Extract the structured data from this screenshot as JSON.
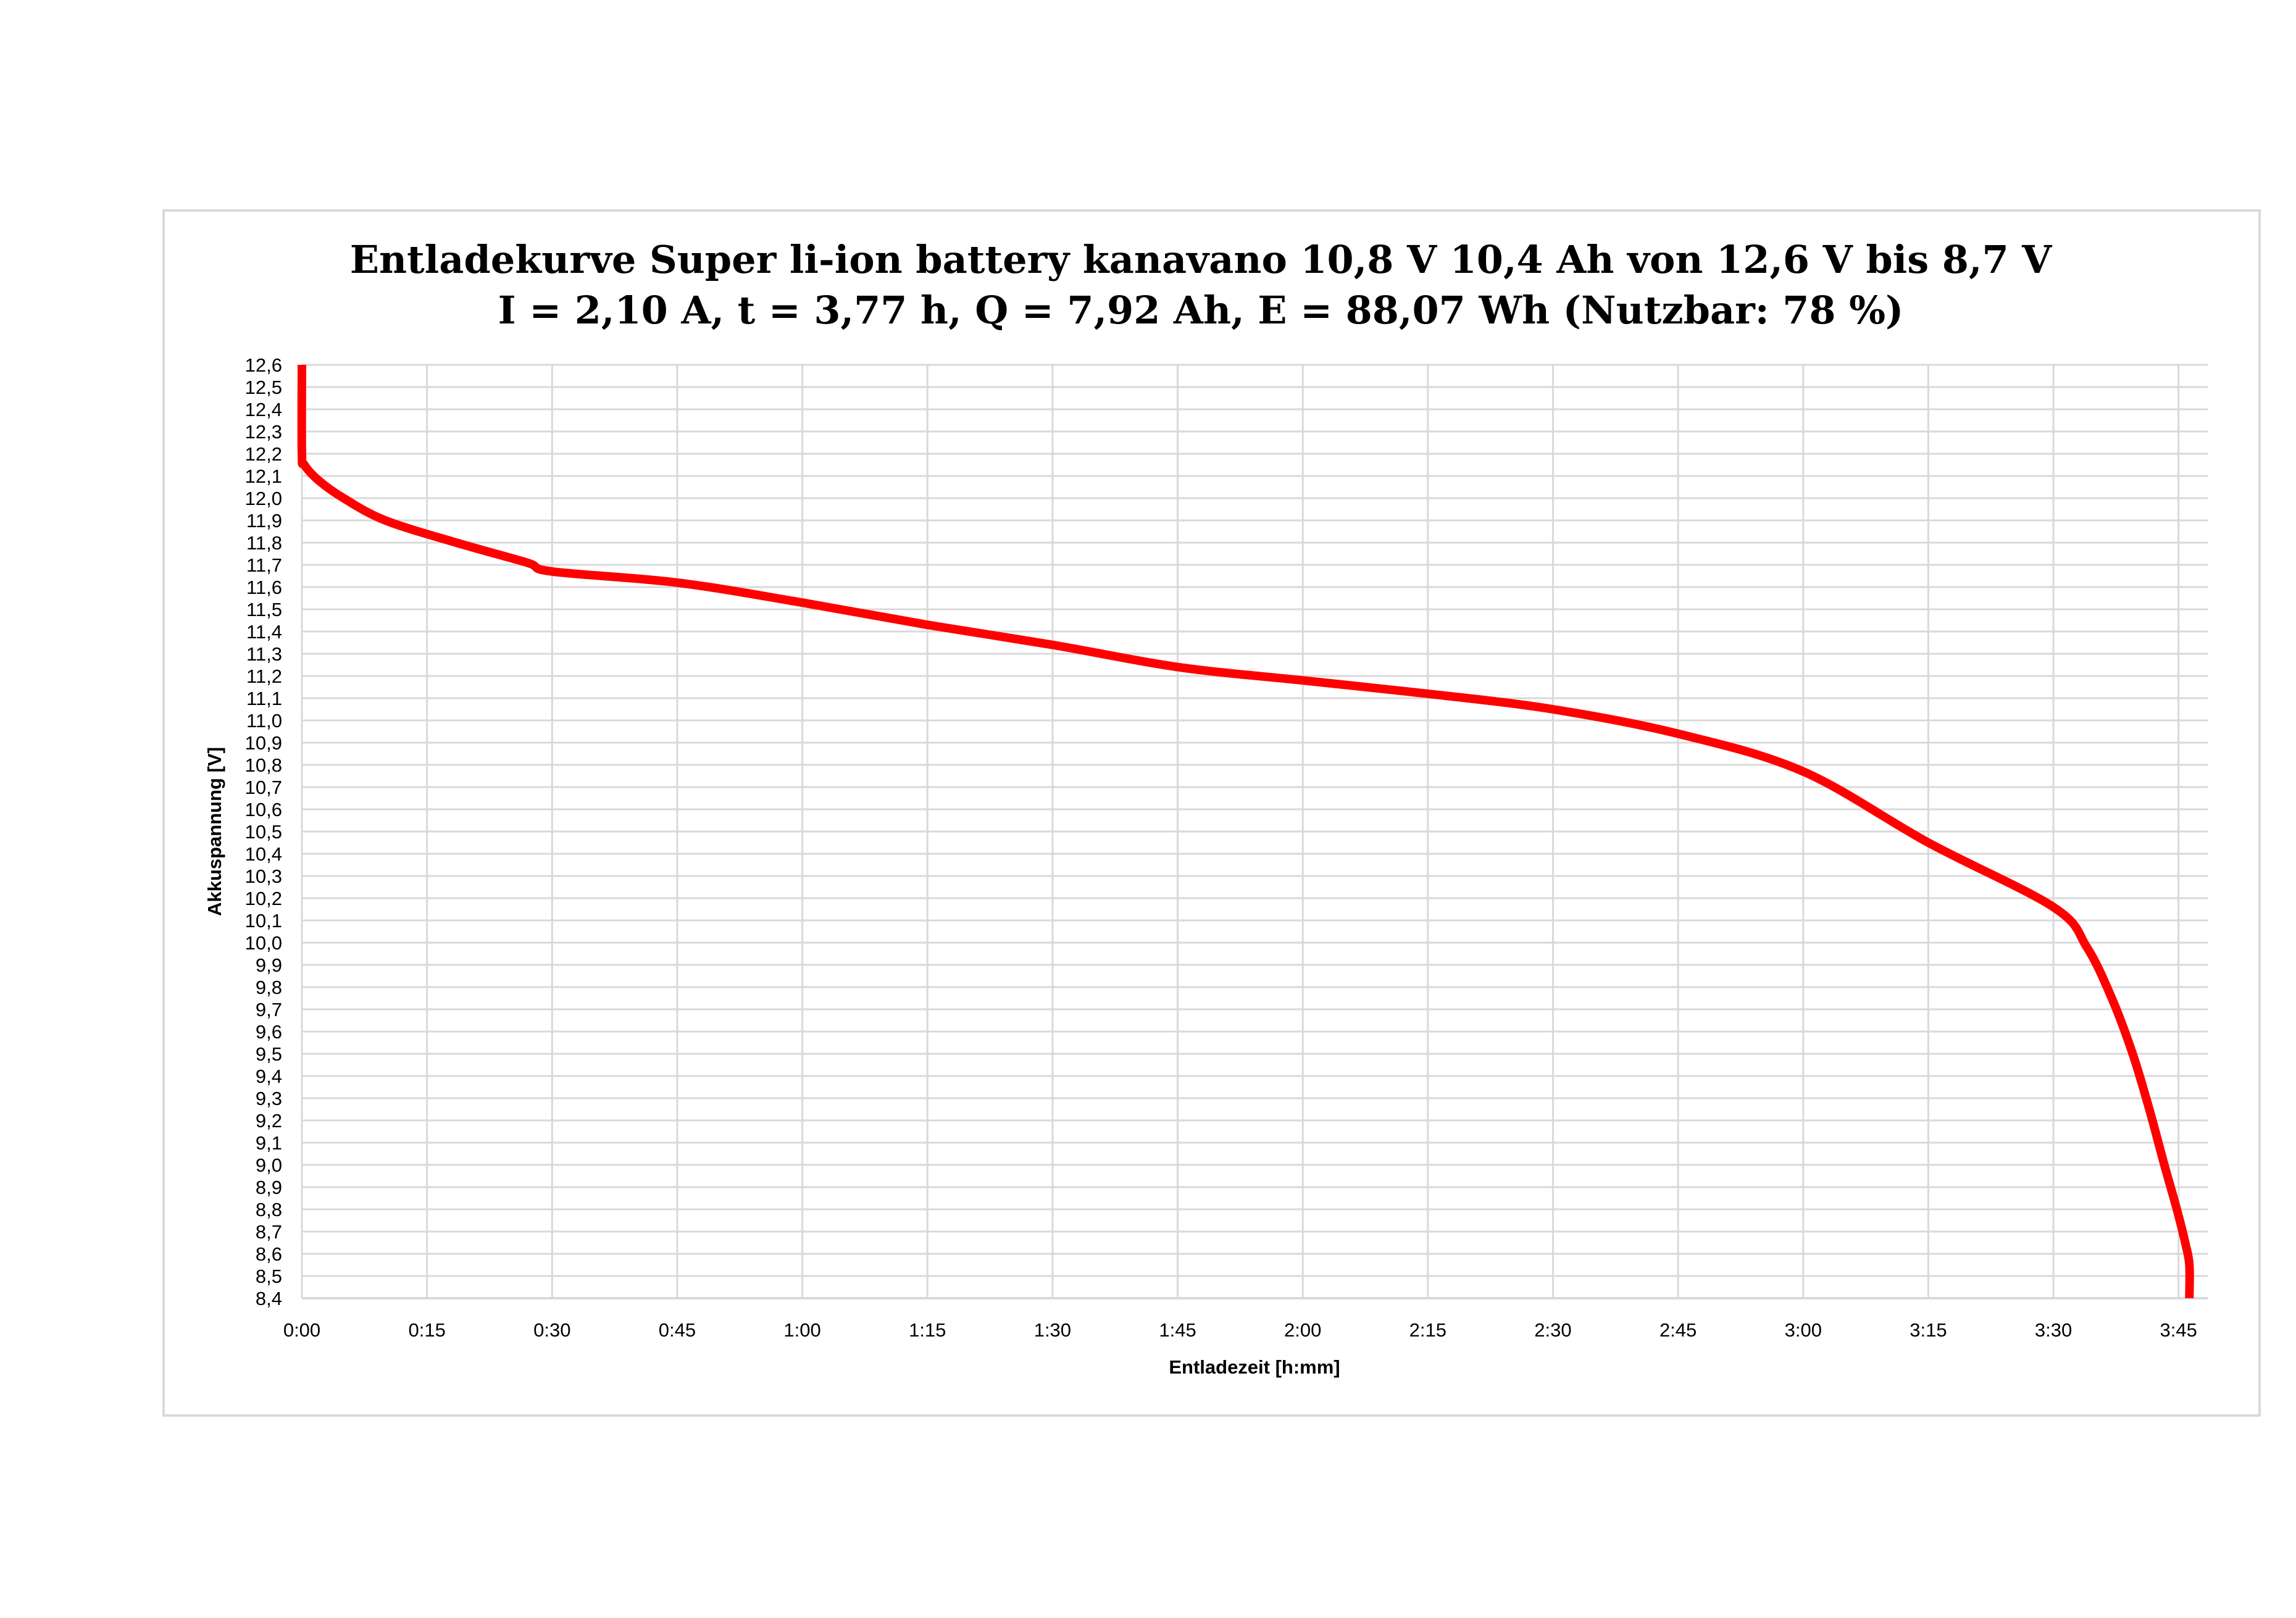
{
  "chart_data": {
    "type": "line",
    "title": "Entladekurve Super li-ion battery kanavano 10,8 V 10,4 Ah von 12,6 V bis 8,7 V",
    "subtitle": "I = 2,10 A, t = 3,77 h, Q = 7,92 Ah, E = 88,07 Wh (Nutzbar: 78 %)",
    "xlabel": "Entladezeit [h:mm]",
    "ylabel": "Akkuspannung [V]",
    "xlim_minutes": [
      0,
      228.5
    ],
    "ylim": [
      8.4,
      12.6
    ],
    "x_tick_minutes": [
      0,
      15,
      30,
      45,
      60,
      75,
      90,
      105,
      120,
      135,
      150,
      165,
      180,
      195,
      210,
      225
    ],
    "x_tick_labels": [
      "0:00",
      "0:15",
      "0:30",
      "0:45",
      "1:00",
      "1:15",
      "1:30",
      "1:45",
      "2:00",
      "2:15",
      "2:30",
      "2:45",
      "3:00",
      "3:15",
      "3:30",
      "3:45"
    ],
    "y_tick_step": 0.1,
    "grid": true,
    "legend": "none",
    "series": [
      {
        "name": "Akkuspannung",
        "color": "#ff0000",
        "x_minutes": [
          0,
          0,
          0.3,
          2,
          5,
          10,
          18.5,
          27,
          30,
          45,
          60,
          75,
          90,
          105,
          120,
          135,
          150,
          165,
          180,
          195,
          210,
          214,
          217,
          219.5,
          221.5,
          223.3,
          224.8,
          225.8,
          226.3,
          226.3
        ],
        "values": [
          12.6,
          12.2,
          12.15,
          12.08,
          12.0,
          11.9,
          11.8,
          11.71,
          11.67,
          11.62,
          11.53,
          11.43,
          11.34,
          11.24,
          11.18,
          11.12,
          11.05,
          10.94,
          10.77,
          10.45,
          10.16,
          9.98,
          9.75,
          9.5,
          9.25,
          9.0,
          8.8,
          8.65,
          8.55,
          8.4
        ]
      }
    ]
  }
}
